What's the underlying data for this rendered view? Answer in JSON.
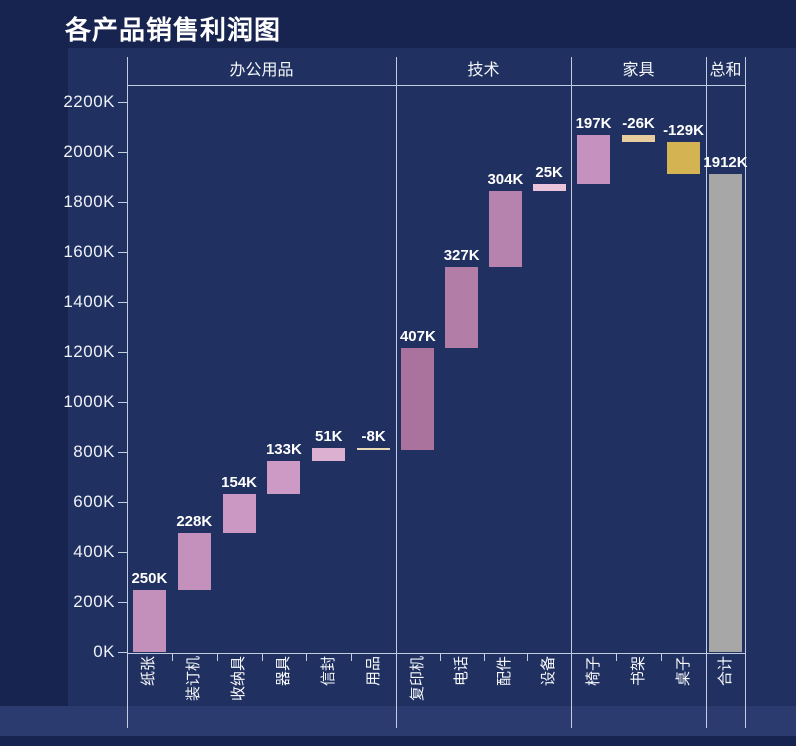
{
  "title": "各产品销售利润图",
  "colors": {
    "background": "#172450",
    "panel": "#203060",
    "bottom_strip": "#2b3b6f",
    "line": "#c3cde0",
    "text": "#ffffff",
    "total_bar": "#a7a7a7"
  },
  "chart_data": {
    "type": "bar",
    "subtype": "waterfall",
    "title": "各产品销售利润图",
    "unit": "K",
    "ylabel": "",
    "xlabel": "",
    "ylim": [
      0,
      2280
    ],
    "y_axis": {
      "tick_step": 200,
      "ticks": [
        {
          "value": 0,
          "label": "0K"
        },
        {
          "value": 200,
          "label": "200K"
        },
        {
          "value": 400,
          "label": "400K"
        },
        {
          "value": 600,
          "label": "600K"
        },
        {
          "value": 800,
          "label": "800K"
        },
        {
          "value": 1000,
          "label": "1000K"
        },
        {
          "value": 1200,
          "label": "1200K"
        },
        {
          "value": 1400,
          "label": "1400K"
        },
        {
          "value": 1600,
          "label": "1600K"
        },
        {
          "value": 1800,
          "label": "1800K"
        },
        {
          "value": 2000,
          "label": "2000K"
        },
        {
          "value": 2200,
          "label": "2200K"
        }
      ]
    },
    "groups": [
      {
        "label": "办公用品",
        "items": [
          {
            "label": "纸张",
            "value": 250,
            "display": "250K",
            "color": "#c38fbb"
          },
          {
            "label": "装订机",
            "value": 228,
            "display": "228K",
            "color": "#c491bd"
          },
          {
            "label": "收纳具",
            "value": 154,
            "display": "154K",
            "color": "#cb97c3"
          },
          {
            "label": "器具",
            "value": 133,
            "display": "133K",
            "color": "#cc9ac5"
          },
          {
            "label": "信封",
            "value": 51,
            "display": "51K",
            "color": "#dcb0d0"
          },
          {
            "label": "用品",
            "value": -8,
            "display": "-8K",
            "color": "#e9d9b8"
          }
        ]
      },
      {
        "label": "技术",
        "items": [
          {
            "label": "复印机",
            "value": 407,
            "display": "407K",
            "color": "#a9739d"
          },
          {
            "label": "电话",
            "value": 327,
            "display": "327K",
            "color": "#b27ea8"
          },
          {
            "label": "配件",
            "value": 304,
            "display": "304K",
            "color": "#b583ad"
          },
          {
            "label": "设备",
            "value": 25,
            "display": "25K",
            "color": "#e9c4da"
          }
        ]
      },
      {
        "label": "家具",
        "items": [
          {
            "label": "椅子",
            "value": 197,
            "display": "197K",
            "color": "#c592c0"
          },
          {
            "label": "书架",
            "value": -26,
            "display": "-26K",
            "color": "#e7cd9e"
          },
          {
            "label": "桌子",
            "value": -129,
            "display": "-129K",
            "color": "#d3b352"
          }
        ]
      },
      {
        "label": "总和",
        "items": [
          {
            "label": "合计",
            "value": 1912,
            "display": "1912K",
            "color": "#a7a7a7",
            "is_total": true
          }
        ]
      }
    ]
  }
}
